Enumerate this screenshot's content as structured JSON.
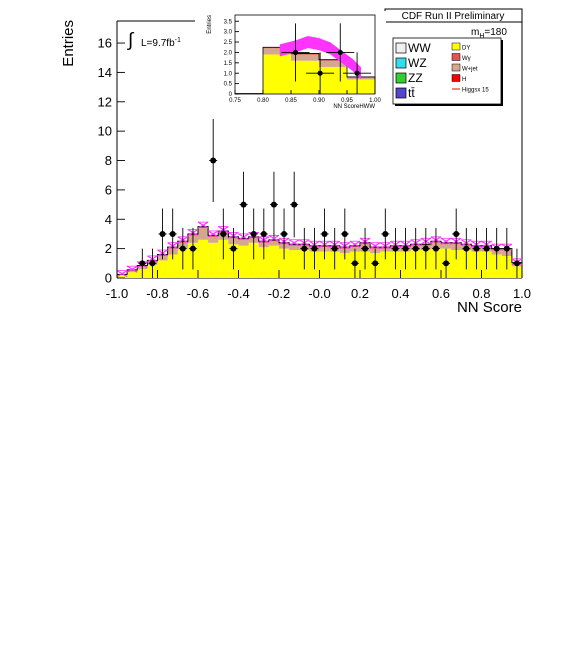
{
  "chart_data": [
    {
      "type": "bar",
      "title": "CDF Run II Preliminary",
      "mass_label": "m",
      "mass_subscript": "H",
      "mass_value": "=180",
      "luminosity_label": "L=9.7fb",
      "luminosity_exponent": "-1",
      "integral_symbol": "∫",
      "xlabel": "NN Score",
      "ylabel": "Entries",
      "xlim": [
        -1.0,
        1.0
      ],
      "ylim": [
        0,
        17.5
      ],
      "x_ticks": [
        "-1.0",
        "-0.8",
        "-0.6",
        "-0.4",
        "-0.2",
        "-0.0",
        "0.2",
        "0.4",
        "0.6",
        "0.8",
        "1.0"
      ],
      "y_ticks": [
        "0",
        "2",
        "4",
        "6",
        "8",
        "10",
        "12",
        "14",
        "16"
      ],
      "grid": false,
      "legend": [
        {
          "label": "WW",
          "color": "#f0f0f0"
        },
        {
          "label": "WZ",
          "color": "#33ddee"
        },
        {
          "label": "ZZ",
          "color": "#33cc33"
        },
        {
          "label": "tt̄",
          "color": "#5544cc"
        },
        {
          "label": "DY",
          "color": "#ffff00"
        },
        {
          "label": "Wγ",
          "color": "#dd5555"
        },
        {
          "label": "W+jet",
          "color": "#d4a88e"
        },
        {
          "label": "H",
          "color": "#ff0000"
        },
        {
          "label": "Higgsx 15",
          "color": "#ff0000"
        }
      ],
      "legend_placement": "top-right",
      "bin_edges": [
        -1.0,
        -0.95,
        -0.9,
        -0.85,
        -0.8,
        -0.75,
        -0.7,
        -0.65,
        -0.6,
        -0.55,
        -0.5,
        -0.45,
        -0.4,
        -0.35,
        -0.3,
        -0.25,
        -0.2,
        -0.15,
        -0.1,
        -0.05,
        0.0,
        0.05,
        0.1,
        0.15,
        0.2,
        0.25,
        0.3,
        0.35,
        0.4,
        0.45,
        0.5,
        0.55,
        0.6,
        0.65,
        0.7,
        0.75,
        0.8,
        0.85,
        0.9,
        0.95,
        1.0
      ],
      "series": [
        {
          "name": "DY",
          "color": "#ffff00",
          "values": [
            0.2,
            0.4,
            0.6,
            0.9,
            1.2,
            1.6,
            2.0,
            2.4,
            2.6,
            2.4,
            2.6,
            2.3,
            2.2,
            2.4,
            2.1,
            2.2,
            2.0,
            1.9,
            1.9,
            1.8,
            1.8,
            1.8,
            1.7,
            1.8,
            1.8,
            1.7,
            1.8,
            1.8,
            1.8,
            1.9,
            1.9,
            2.0,
            2.0,
            1.9,
            1.9,
            1.8,
            1.8,
            1.6,
            1.5,
            0.8
          ]
        },
        {
          "name": "W+jet",
          "color": "#d4a88e",
          "values": [
            0.05,
            0.1,
            0.2,
            0.2,
            0.3,
            0.4,
            0.4,
            0.5,
            0.8,
            0.4,
            0.5,
            0.4,
            0.4,
            0.3,
            0.3,
            0.3,
            0.3,
            0.3,
            0.3,
            0.3,
            0.3,
            0.3,
            0.3,
            0.3,
            0.5,
            0.3,
            0.2,
            0.3,
            0.3,
            0.3,
            0.3,
            0.4,
            0.3,
            0.4,
            0.3,
            0.3,
            0.3,
            0.3,
            0.4,
            0.2
          ]
        },
        {
          "name": "Wγ",
          "color": "#dd5555",
          "values": [
            0.0,
            0.05,
            0.05,
            0.1,
            0.1,
            0.1,
            0.1,
            0.1,
            0.1,
            0.1,
            0.1,
            0.1,
            0.1,
            0.1,
            0.1,
            0.1,
            0.1,
            0.1,
            0.1,
            0.1,
            0.1,
            0.1,
            0.1,
            0.1,
            0.1,
            0.1,
            0.1,
            0.1,
            0.1,
            0.1,
            0.1,
            0.1,
            0.1,
            0.1,
            0.1,
            0.1,
            0.1,
            0.1,
            0.1,
            0.05
          ]
        }
      ],
      "signal_band": {
        "name": "Higgsx 15",
        "color": "#ff33ff",
        "values": [
          0.3,
          0.6,
          0.9,
          1.3,
          1.7,
          2.2,
          2.6,
          3.1,
          3.6,
          3.0,
          3.3,
          2.9,
          2.8,
          2.9,
          2.6,
          2.7,
          2.5,
          2.4,
          2.4,
          2.3,
          2.3,
          2.3,
          2.2,
          2.3,
          2.5,
          2.2,
          2.2,
          2.3,
          2.3,
          2.4,
          2.5,
          2.6,
          2.5,
          2.5,
          2.4,
          2.3,
          2.3,
          2.1,
          2.1,
          1.1
        ]
      },
      "data_points": {
        "x": [
          -0.875,
          -0.825,
          -0.775,
          -0.725,
          -0.675,
          -0.625,
          -0.525,
          -0.475,
          -0.425,
          -0.375,
          -0.325,
          -0.275,
          -0.225,
          -0.175,
          -0.125,
          -0.075,
          -0.025,
          0.025,
          0.075,
          0.125,
          0.175,
          0.225,
          0.275,
          0.325,
          0.375,
          0.425,
          0.475,
          0.525,
          0.575,
          0.625,
          0.675,
          0.725,
          0.775,
          0.825,
          0.875,
          0.925,
          0.975
        ],
        "y": [
          1,
          1,
          3,
          3,
          2,
          2,
          8,
          3,
          2,
          5,
          3,
          3,
          5,
          3,
          5,
          2,
          2,
          3,
          2,
          3,
          1,
          2,
          1,
          3,
          2,
          2,
          2,
          2,
          2,
          1,
          3,
          2,
          2,
          2,
          2,
          2,
          1
        ]
      }
    },
    {
      "type": "bar",
      "title": "",
      "xlabel": "NN ScoreHWW",
      "ylabel": "Entries",
      "xlim": [
        0.75,
        1.0
      ],
      "ylim": [
        0,
        3.8
      ],
      "x_ticks": [
        "0.75",
        "0.80",
        "0.85",
        "0.90",
        "0.95",
        "1.00"
      ],
      "y_ticks": [
        "0",
        "0.5",
        "1.0",
        "1.5",
        "2.0",
        "2.5",
        "3.0",
        "3.5"
      ],
      "bin_edges": [
        0.75,
        0.8,
        0.85,
        0.9,
        0.95,
        1.0
      ],
      "series": [
        {
          "name": "DY",
          "color": "#ffff00",
          "values": [
            0.02,
            1.9,
            1.6,
            1.3,
            0.7
          ]
        },
        {
          "name": "W+jet",
          "color": "#d4a88e",
          "values": [
            0.0,
            0.3,
            0.3,
            0.3,
            0.1
          ]
        },
        {
          "name": "Wγ",
          "color": "#dd5555",
          "values": [
            0.0,
            0.05,
            0.05,
            0.05,
            0.02
          ]
        }
      ],
      "signal_band": {
        "name": "Higgsx 15",
        "color": "#ff33ff",
        "x": [
          0.83,
          0.86,
          0.88,
          0.9,
          0.92,
          0.94,
          0.96,
          0.975
        ],
        "y": [
          2.1,
          2.3,
          2.5,
          2.4,
          2.2,
          1.8,
          1.4,
          1.0
        ]
      },
      "data_points": {
        "x": [
          0.858,
          0.902,
          0.938,
          0.968
        ],
        "y": [
          2.0,
          1.0,
          2.0,
          1.0
        ],
        "err": [
          1.4,
          1.0,
          1.4,
          1.0
        ]
      }
    }
  ]
}
